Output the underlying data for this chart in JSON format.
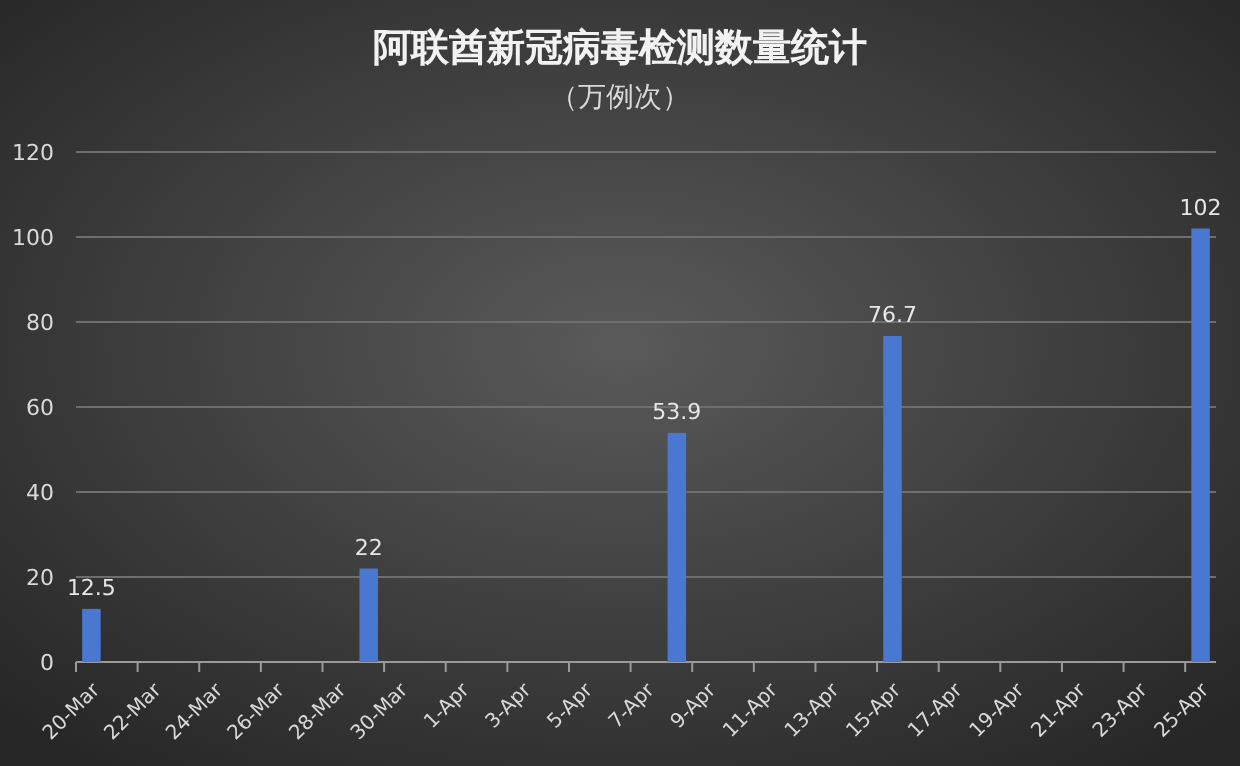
{
  "chart_data": {
    "type": "bar",
    "title": "阿联酋新冠病毒检测数量统计",
    "subtitle": "（万例次）",
    "categories": [
      "20-Mar",
      null,
      "22-Mar",
      null,
      "24-Mar",
      null,
      "26-Mar",
      null,
      "28-Mar",
      null,
      "30-Mar",
      null,
      "1-Apr",
      null,
      "3-Apr",
      null,
      "5-Apr",
      null,
      "7-Apr",
      null,
      "9-Apr",
      null,
      "11-Apr",
      null,
      "13-Apr",
      null,
      "15-Apr",
      null,
      "17-Apr",
      null,
      "19-Apr",
      null,
      "21-Apr",
      null,
      "23-Apr",
      null,
      "25-Apr"
    ],
    "values": [
      12.5,
      null,
      null,
      null,
      null,
      null,
      null,
      null,
      null,
      22,
      null,
      null,
      null,
      null,
      null,
      null,
      null,
      null,
      null,
      53.9,
      null,
      null,
      null,
      null,
      null,
      null,
      76.7,
      null,
      null,
      null,
      null,
      null,
      null,
      null,
      null,
      null,
      102
    ],
    "color": "#4a78d0",
    "ylim": [
      0,
      120
    ],
    "yticks": [
      0,
      20,
      40,
      60,
      80,
      100,
      120
    ],
    "grid": "y",
    "data_labels": true
  }
}
